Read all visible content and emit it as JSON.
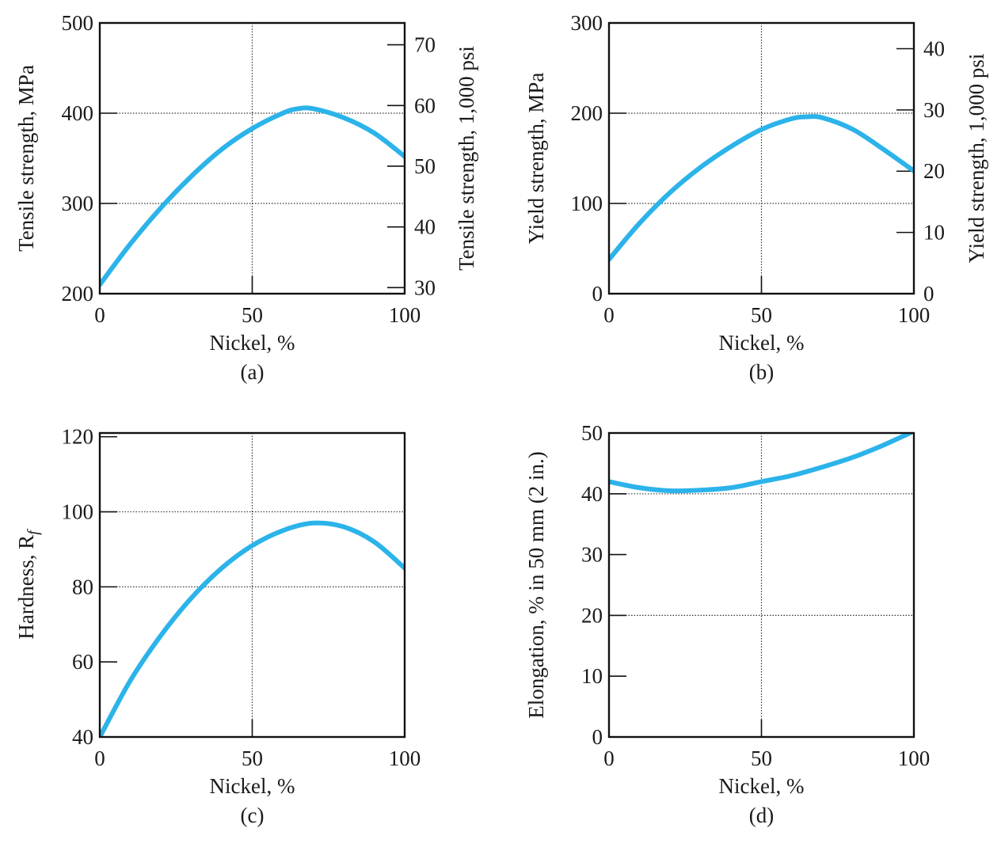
{
  "colors": {
    "curve": "#2bb3ea",
    "axis": "#111111",
    "grid": "#333333"
  },
  "chart_data": [
    {
      "id": "a",
      "type": "line",
      "caption": "(a)",
      "xlabel": "Nickel, %",
      "ylabel": "Tensile strength, MPa",
      "y2label": "Tensile strength, 1,000 psi",
      "xlim": [
        0,
        100
      ],
      "ylim": [
        200,
        500
      ],
      "y2lim": [
        29,
        73.6
      ],
      "xticks": [
        0,
        50,
        100
      ],
      "yticks": [
        200,
        300,
        400,
        500
      ],
      "y2ticks": [
        30,
        40,
        50,
        60,
        70
      ],
      "xgrid": [
        50
      ],
      "ygrid": [
        300,
        400
      ],
      "grid": true,
      "x": [
        0,
        10,
        20,
        30,
        40,
        50,
        60,
        65,
        70,
        80,
        90,
        100
      ],
      "y": [
        210,
        255,
        295,
        330,
        360,
        383,
        400,
        405,
        405,
        395,
        378,
        352
      ]
    },
    {
      "id": "b",
      "type": "line",
      "caption": "(b)",
      "xlabel": "Nickel, %",
      "ylabel": "Yield strength, MPa",
      "y2label": "Yield strength, 1,000 psi",
      "xlim": [
        0,
        100
      ],
      "ylim": [
        0,
        300
      ],
      "y2lim": [
        0,
        44.2
      ],
      "xticks": [
        0,
        50,
        100
      ],
      "yticks": [
        0,
        100,
        200,
        300
      ],
      "y2ticks": [
        0,
        10,
        20,
        30,
        40
      ],
      "xgrid": [
        50
      ],
      "ygrid": [
        100,
        200
      ],
      "grid": true,
      "x": [
        0,
        10,
        20,
        30,
        40,
        50,
        60,
        65,
        70,
        80,
        90,
        100
      ],
      "y": [
        38,
        78,
        112,
        140,
        163,
        182,
        194,
        196,
        195,
        182,
        160,
        136
      ]
    },
    {
      "id": "c",
      "type": "line",
      "caption": "(c)",
      "xlabel": "Nickel, %",
      "ylabel": "Hardness, R",
      "ylabel_sub": "f",
      "xlim": [
        0,
        100
      ],
      "ylim": [
        40,
        121
      ],
      "xticks": [
        0,
        50,
        100
      ],
      "yticks": [
        40,
        60,
        80,
        100,
        120
      ],
      "xgrid": [
        50
      ],
      "ygrid": [
        80,
        100
      ],
      "grid": true,
      "x": [
        0,
        10,
        20,
        30,
        40,
        50,
        60,
        70,
        80,
        90,
        100
      ],
      "y": [
        40,
        55,
        67,
        77,
        85,
        91,
        95,
        97,
        96,
        92,
        85
      ]
    },
    {
      "id": "d",
      "type": "line",
      "caption": "(d)",
      "xlabel": "Nickel, %",
      "ylabel": "Elongation, % in 50 mm (2 in.)",
      "xlim": [
        0,
        100
      ],
      "ylim": [
        0,
        50
      ],
      "xticks": [
        0,
        50,
        100
      ],
      "yticks": [
        0,
        10,
        20,
        30,
        40,
        50
      ],
      "xgrid": [
        50
      ],
      "ygrid": [
        20,
        40
      ],
      "grid": true,
      "x": [
        0,
        10,
        20,
        30,
        40,
        50,
        60,
        70,
        80,
        90,
        100
      ],
      "y": [
        42,
        41,
        40.5,
        40.6,
        41,
        42,
        43,
        44.4,
        46,
        48,
        50.3
      ]
    }
  ]
}
